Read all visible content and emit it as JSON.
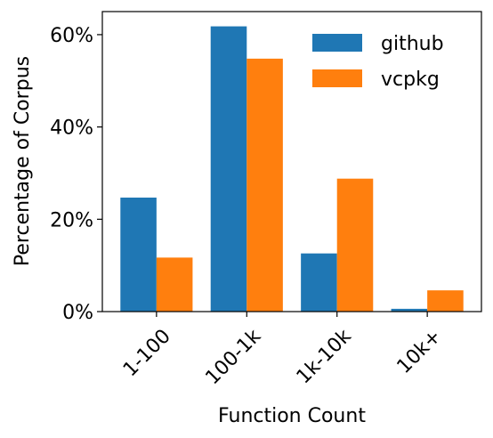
{
  "chart_data": {
    "type": "bar",
    "title": "",
    "xlabel": "Function Count",
    "ylabel": "Percentage of Corpus",
    "categories": [
      "1-100",
      "100-1k",
      "1k-10k",
      "10k+"
    ],
    "series": [
      {
        "name": "github",
        "values": [
          24.7,
          61.8,
          12.6,
          0.6
        ],
        "color": "#1f77b4"
      },
      {
        "name": "vcpkg",
        "values": [
          11.7,
          54.8,
          28.8,
          4.6
        ],
        "color": "#ff7f0e"
      }
    ],
    "ylim": [
      0,
      65
    ],
    "yticks": [
      0,
      20,
      40,
      60
    ],
    "ytick_labels": [
      "0%",
      "20%",
      "40%",
      "60%"
    ],
    "grid": false,
    "legend_position": "top-right"
  }
}
